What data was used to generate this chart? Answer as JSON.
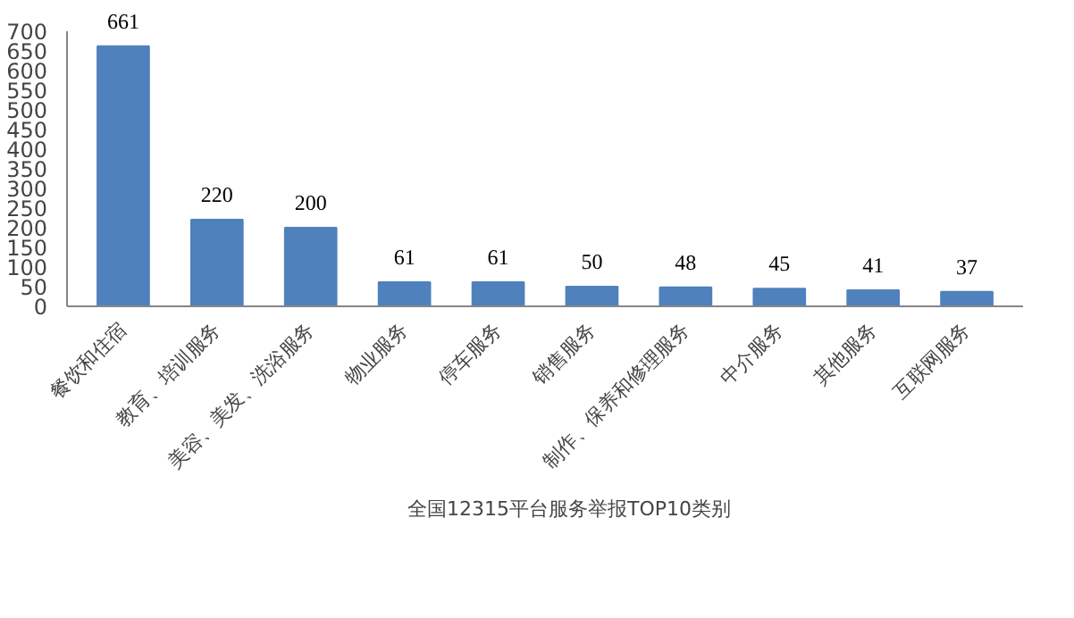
{
  "chart_data": {
    "type": "bar",
    "categories": [
      "餐饮和住宿",
      "教育、培训服务",
      "美容、美发、洗浴服务",
      "物业服务",
      "停车服务",
      "销售服务",
      "制作、保养和修理服务",
      "中介服务",
      "其他服务",
      "互联网服务"
    ],
    "series": [
      {
        "name": "全国12315平台服务举报TOP10类别",
        "color": "#4f81bd",
        "values": [
          661,
          220,
          200,
          61,
          61,
          50,
          48,
          45,
          41,
          37
        ]
      }
    ],
    "ylim": [
      0,
      700
    ],
    "yticks": [
      0,
      50,
      100,
      150,
      200,
      250,
      300,
      350,
      400,
      450,
      500,
      550,
      600,
      650,
      700
    ],
    "data_labels": true,
    "grid": false,
    "legend": "bottom"
  }
}
